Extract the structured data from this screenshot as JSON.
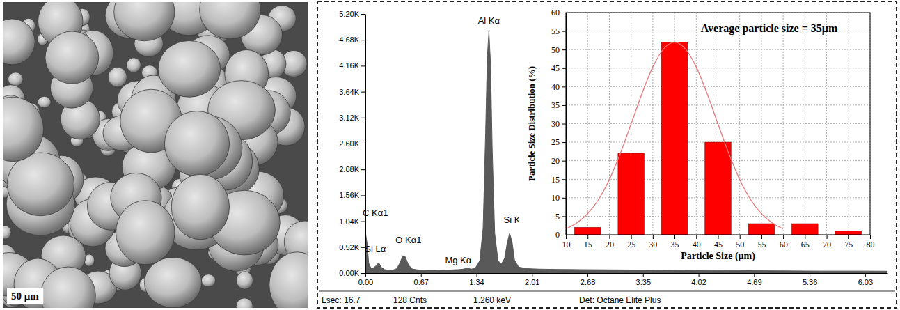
{
  "image": {
    "scale_bar": "50 μm"
  },
  "chart_data": [
    {
      "type": "area",
      "x": [
        0.0,
        0.02,
        0.04,
        0.07,
        0.1,
        0.13,
        0.16,
        0.19,
        0.23,
        0.28,
        0.33,
        0.38,
        0.42,
        0.45,
        0.48,
        0.52,
        0.57,
        0.65,
        0.75,
        0.85,
        0.95,
        1.05,
        1.12,
        1.18,
        1.22,
        1.25,
        1.28,
        1.33,
        1.38,
        1.42,
        1.45,
        1.47,
        1.49,
        1.51,
        1.53,
        1.56,
        1.6,
        1.64,
        1.68,
        1.71,
        1.74,
        1.77,
        1.8,
        1.85,
        1.95,
        2.1,
        2.3,
        2.6,
        3.0,
        3.5,
        4.0,
        4.5,
        5.0,
        5.5,
        6.0,
        6.3
      ],
      "values": [
        820,
        600,
        200,
        90,
        110,
        150,
        210,
        120,
        70,
        60,
        60,
        90,
        220,
        340,
        330,
        160,
        80,
        60,
        55,
        55,
        60,
        65,
        70,
        80,
        95,
        90,
        80,
        110,
        250,
        900,
        2800,
        4300,
        4850,
        4200,
        2500,
        800,
        250,
        180,
        300,
        600,
        800,
        620,
        260,
        120,
        90,
        80,
        75,
        70,
        65,
        60,
        55,
        50,
        45,
        40,
        40,
        38
      ],
      "color": "#595959",
      "xlim": [
        0,
        6.3
      ],
      "xticks": [
        {
          "value": 0,
          "label": "0.00"
        },
        {
          "value": 0.67,
          "label": "0.67"
        },
        {
          "value": 1.34,
          "label": "1.34"
        },
        {
          "value": 2.01,
          "label": "2.01"
        },
        {
          "value": 2.68,
          "label": "2.68"
        },
        {
          "value": 3.35,
          "label": "3.35"
        },
        {
          "value": 4.02,
          "label": "4.02"
        },
        {
          "value": 4.69,
          "label": "4.69"
        },
        {
          "value": 5.36,
          "label": "5.36"
        },
        {
          "value": 6.03,
          "label": "6.03"
        }
      ],
      "ylim": [
        0,
        5200
      ],
      "yticks": [
        {
          "value": 0,
          "label": "0.00K"
        },
        {
          "value": 520,
          "label": "0.52K"
        },
        {
          "value": 1040,
          "label": "1.04K"
        },
        {
          "value": 1560,
          "label": "1.56K"
        },
        {
          "value": 2080,
          "label": "2.08K"
        },
        {
          "value": 2600,
          "label": "2.60K"
        },
        {
          "value": 3120,
          "label": "3.12K"
        },
        {
          "value": 3640,
          "label": "3.64K"
        },
        {
          "value": 4160,
          "label": "4.16K"
        },
        {
          "value": 4680,
          "label": "4.68K"
        },
        {
          "value": 5200,
          "label": "5.20K"
        }
      ],
      "annotations": [
        {
          "text": "C Kα1",
          "x": 0.12,
          "y": 1150
        },
        {
          "text": "Si Lα",
          "x": 0.12,
          "y": 420
        },
        {
          "text": "O Kα1",
          "x": 0.52,
          "y": 600
        },
        {
          "text": "Mg Kα",
          "x": 1.12,
          "y": 200
        },
        {
          "text": "Al Kα",
          "x": 1.49,
          "y": 5000
        },
        {
          "text": "Si Kα",
          "x": 1.8,
          "y": 1000
        }
      ],
      "footer": [
        "Lsec: 16.7",
        "128 Cnts",
        "1.260 keV",
        "Det: Octane Elite Plus"
      ]
    },
    {
      "type": "bar",
      "title": "Average particle size = 35μm",
      "x_label": "Particle Size (μm)",
      "y_label": "Particle Size Distribution (%)",
      "x": [
        15,
        25,
        35,
        45,
        55,
        65,
        75
      ],
      "values": [
        2,
        22,
        52,
        25,
        3,
        3,
        1
      ],
      "color": "#ff0000",
      "xlim": [
        10,
        80
      ],
      "xticks": [
        10,
        15,
        20,
        25,
        30,
        35,
        40,
        45,
        50,
        55,
        60,
        65,
        70,
        75,
        80
      ],
      "ylim": [
        0,
        60
      ],
      "yticks": [
        0,
        5,
        10,
        15,
        20,
        25,
        30,
        35,
        40,
        45,
        50,
        55,
        60
      ],
      "grid": true,
      "curve": {
        "type": "line",
        "color": "#e87878",
        "x": [
          10,
          12.5,
          15,
          17.5,
          20,
          22.5,
          25,
          27.5,
          30,
          32.5,
          35,
          37.5,
          40,
          42.5,
          45,
          47.5,
          50,
          52.5,
          55,
          57.5,
          60
        ],
        "values": [
          1.6,
          3.2,
          5.7,
          9.5,
          14.9,
          21.9,
          29.9,
          38.1,
          45.3,
          50.2,
          52,
          50.2,
          45.3,
          38.1,
          29.9,
          21.9,
          14.9,
          9.5,
          5.7,
          3.2,
          1.6
        ]
      }
    }
  ]
}
